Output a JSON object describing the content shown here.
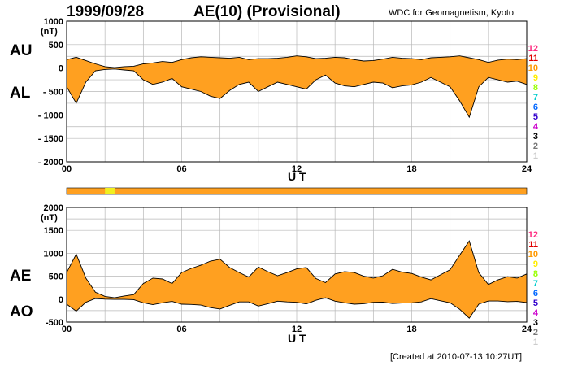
{
  "header": {
    "date": "1999/09/28",
    "title": "AE(10) (Provisional)",
    "source": "WDC for Geomagnetism, Kyoto"
  },
  "footer": {
    "created": "[Created at 2010-07-13 10:27UT]"
  },
  "chart_data": [
    {
      "type": "area",
      "panel": "top",
      "unit_label": "(nT)",
      "left_labels": [
        "AU",
        "AL"
      ],
      "xlabel": "U T",
      "x_ticks": [
        "00",
        "06",
        "12",
        "18",
        "24"
      ],
      "y_ticks": [
        "1000",
        "500",
        "0",
        "- 500",
        "- 1000",
        "- 1500",
        "- 2000"
      ],
      "xlim": [
        0,
        24
      ],
      "ylim": [
        -2000,
        1000
      ],
      "grid": true,
      "fill_color": "#ffa020",
      "series": [
        {
          "name": "AU",
          "x": [
            0,
            0.5,
            1,
            1.5,
            2,
            2.5,
            3,
            3.5,
            4,
            4.5,
            5,
            5.5,
            6,
            6.5,
            7,
            7.5,
            8,
            8.5,
            9,
            9.5,
            10,
            10.5,
            11,
            11.5,
            12,
            12.5,
            13,
            13.5,
            14,
            14.5,
            15,
            15.5,
            16,
            16.5,
            17,
            17.5,
            18,
            18.5,
            19,
            19.5,
            20,
            20.5,
            21,
            21.5,
            22,
            22.5,
            23,
            23.5,
            24
          ],
          "values": [
            180,
            230,
            160,
            90,
            30,
            10,
            30,
            40,
            90,
            110,
            140,
            120,
            180,
            220,
            240,
            230,
            220,
            210,
            230,
            180,
            200,
            200,
            210,
            230,
            260,
            240,
            200,
            210,
            230,
            220,
            180,
            150,
            160,
            190,
            230,
            210,
            200,
            180,
            220,
            230,
            240,
            260,
            220,
            180,
            120,
            170,
            190,
            180,
            200
          ]
        },
        {
          "name": "AL",
          "x": [
            0,
            0.5,
            1,
            1.5,
            2,
            2.5,
            3,
            3.5,
            4,
            4.5,
            5,
            5.5,
            6,
            6.5,
            7,
            7.5,
            8,
            8.5,
            9,
            9.5,
            10,
            10.5,
            11,
            11.5,
            12,
            12.5,
            13,
            13.5,
            14,
            14.5,
            15,
            15.5,
            16,
            16.5,
            17,
            17.5,
            18,
            18.5,
            19,
            19.5,
            20,
            20.5,
            21,
            21.5,
            22,
            22.5,
            23,
            23.5,
            24
          ],
          "values": [
            -400,
            -750,
            -300,
            -60,
            -30,
            -20,
            -40,
            -60,
            -250,
            -350,
            -300,
            -220,
            -400,
            -450,
            -500,
            -600,
            -650,
            -480,
            -350,
            -300,
            -500,
            -400,
            -300,
            -350,
            -400,
            -450,
            -250,
            -150,
            -320,
            -380,
            -400,
            -350,
            -300,
            -320,
            -420,
            -380,
            -360,
            -300,
            -200,
            -300,
            -400,
            -700,
            -1050,
            -400,
            -200,
            -250,
            -300,
            -280,
            -350
          ]
        }
      ],
      "levels": [
        {
          "label": "12",
          "color": "#ff2c80"
        },
        {
          "label": "11",
          "color": "#e00000"
        },
        {
          "label": "10",
          "color": "#ff9900"
        },
        {
          "label": "9",
          "color": "#ffee00"
        },
        {
          "label": "8",
          "color": "#99ff00"
        },
        {
          "label": "7",
          "color": "#00cccc"
        },
        {
          "label": "6",
          "color": "#0066ff"
        },
        {
          "label": "5",
          "color": "#3300cc"
        },
        {
          "label": "4",
          "color": "#cc00cc"
        },
        {
          "label": "3",
          "color": "#000000"
        },
        {
          "label": "2",
          "color": "#777777"
        },
        {
          "label": "1",
          "color": "#cccccc"
        }
      ]
    },
    {
      "type": "area",
      "panel": "bottom",
      "unit_label": "(nT)",
      "left_labels": [
        "AE",
        "AO"
      ],
      "xlabel": "U T",
      "x_ticks": [
        "00",
        "06",
        "12",
        "18",
        "24"
      ],
      "y_ticks": [
        "2000",
        "1500",
        "1000",
        "500",
        "0",
        "-500"
      ],
      "xlim": [
        0,
        24
      ],
      "ylim": [
        -500,
        2000
      ],
      "grid": true,
      "fill_color": "#ffa020",
      "series": [
        {
          "name": "AE",
          "x": [
            0,
            0.5,
            1,
            1.5,
            2,
            2.5,
            3,
            3.5,
            4,
            4.5,
            5,
            5.5,
            6,
            6.5,
            7,
            7.5,
            8,
            8.5,
            9,
            9.5,
            10,
            10.5,
            11,
            11.5,
            12,
            12.5,
            13,
            13.5,
            14,
            14.5,
            15,
            15.5,
            16,
            16.5,
            17,
            17.5,
            18,
            18.5,
            19,
            19.5,
            20,
            20.5,
            21,
            21.5,
            22,
            22.5,
            23,
            23.5,
            24
          ],
          "values": [
            580,
            980,
            460,
            150,
            60,
            30,
            70,
            100,
            340,
            460,
            440,
            340,
            580,
            670,
            740,
            830,
            870,
            690,
            580,
            480,
            700,
            600,
            510,
            580,
            660,
            690,
            450,
            360,
            550,
            600,
            580,
            500,
            460,
            510,
            650,
            590,
            560,
            480,
            420,
            530,
            640,
            960,
            1270,
            580,
            320,
            420,
            490,
            460,
            550
          ]
        },
        {
          "name": "AO",
          "x": [
            0,
            0.5,
            1,
            1.5,
            2,
            2.5,
            3,
            3.5,
            4,
            4.5,
            5,
            5.5,
            6,
            6.5,
            7,
            7.5,
            8,
            8.5,
            9,
            9.5,
            10,
            10.5,
            11,
            11.5,
            12,
            12.5,
            13,
            13.5,
            14,
            14.5,
            15,
            15.5,
            16,
            16.5,
            17,
            17.5,
            18,
            18.5,
            19,
            19.5,
            20,
            20.5,
            21,
            21.5,
            22,
            22.5,
            23,
            23.5,
            24
          ],
          "values": [
            -110,
            -260,
            -70,
            15,
            0,
            -5,
            -5,
            -10,
            -80,
            -120,
            -80,
            -50,
            -110,
            -115,
            -130,
            -185,
            -215,
            -135,
            -60,
            -60,
            -150,
            -100,
            -45,
            -60,
            -70,
            -105,
            -25,
            30,
            -45,
            -80,
            -110,
            -100,
            -70,
            -65,
            -95,
            -85,
            -80,
            -60,
            10,
            -35,
            -80,
            -220,
            -415,
            -110,
            -40,
            -40,
            -55,
            -50,
            -75
          ]
        }
      ],
      "levels": [
        {
          "label": "12",
          "color": "#ff2c80"
        },
        {
          "label": "11",
          "color": "#e00000"
        },
        {
          "label": "10",
          "color": "#ff9900"
        },
        {
          "label": "9",
          "color": "#ffee00"
        },
        {
          "label": "8",
          "color": "#99ff00"
        },
        {
          "label": "7",
          "color": "#00cccc"
        },
        {
          "label": "6",
          "color": "#0066ff"
        },
        {
          "label": "5",
          "color": "#3300cc"
        },
        {
          "label": "4",
          "color": "#cc00cc"
        },
        {
          "label": "3",
          "color": "#000000"
        },
        {
          "label": "2",
          "color": "#777777"
        },
        {
          "label": "1",
          "color": "#cccccc"
        }
      ]
    }
  ],
  "station_bar": {
    "fill_color": "#ffa020",
    "highlight_color": "#f0f020",
    "highlight_x": [
      2,
      2.5
    ]
  }
}
